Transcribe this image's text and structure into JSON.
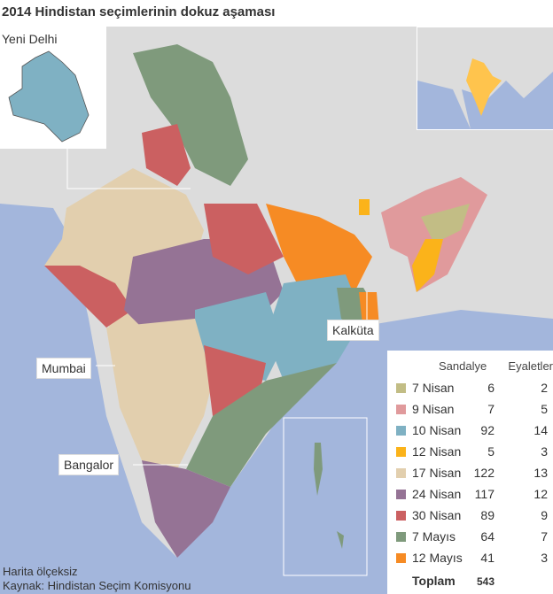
{
  "title": "2014 Hindistan seçimlerinin dokuz aşaması",
  "inset_label": "Yeni Delhi",
  "city_labels": {
    "mumbai": "Mumbai",
    "bangalor": "Bangalor",
    "kalkuta": "Kalküta"
  },
  "colors": {
    "land": "#dcdcdc",
    "sea": "#a3b6dc",
    "highlight": "#ffc44d"
  },
  "legend": {
    "header_seats": "Sandalye",
    "header_states": "Eyaletler",
    "rows": [
      {
        "label": "7 Nisan",
        "seats": "6",
        "states": "2",
        "color": "#c2bd85"
      },
      {
        "label": "9 Nisan",
        "seats": "7",
        "states": "5",
        "color": "#e09a9c"
      },
      {
        "label": "10 Nisan",
        "seats": "92",
        "states": "14",
        "color": "#7fb1c3"
      },
      {
        "label": "12 Nisan",
        "seats": "5",
        "states": "3",
        "color": "#fbb31a"
      },
      {
        "label": "17 Nisan",
        "seats": "122",
        "states": "13",
        "color": "#e2cfae"
      },
      {
        "label": "24 Nisan",
        "seats": "117",
        "states": "12",
        "color": "#957395"
      },
      {
        "label": "30 Nisan",
        "seats": "89",
        "states": "9",
        "color": "#cb6061"
      },
      {
        "label": "7 Mayıs",
        "seats": "64",
        "states": "7",
        "color": "#7f9a7c"
      },
      {
        "label": "12 Mayıs",
        "seats": "41",
        "states": "3",
        "color": "#f68b24"
      }
    ],
    "total_label": "Toplam",
    "total_seats": "543"
  },
  "footer": {
    "note": "Harita ölçeksiz",
    "source": "Kaynak: Hindistan Seçim Komisyonu"
  }
}
